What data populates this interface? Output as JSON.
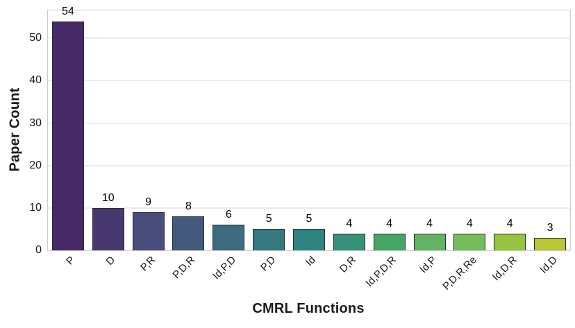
{
  "figure": {
    "background_color": "#ffffff",
    "text_color": "#1a1a1a"
  },
  "chart_data": {
    "type": "bar",
    "title": "",
    "xlabel": "CMRL Functions",
    "ylabel": "Paper Count",
    "categories": [
      "P",
      "D",
      "P,R",
      "P,D,R",
      "Id,P,D",
      "P,D",
      "Id",
      "D,R",
      "Id,P,D,R",
      "Id,P",
      "P,D,R,Re",
      "Id,D,R",
      "Id,D"
    ],
    "values": [
      54,
      10,
      9,
      8,
      6,
      5,
      5,
      4,
      4,
      4,
      4,
      4,
      3
    ],
    "bar_value_labels": [
      "54",
      "10",
      "9",
      "8",
      "6",
      "5",
      "5",
      "4",
      "4",
      "4",
      "4",
      "4",
      "3"
    ],
    "bar_colors": [
      "#462a68",
      "#47396f",
      "#4a4d7c",
      "#43597e",
      "#3d6b80",
      "#35797f",
      "#2f8380",
      "#359178",
      "#45a566",
      "#63b365",
      "#76bd5c",
      "#98c53f",
      "#b9c733"
    ],
    "bar_edge_color": "#2b2b2b",
    "yticks": [
      0,
      10,
      20,
      30,
      40,
      50
    ],
    "ylim": [
      0,
      56.6
    ],
    "grid": "horizontal",
    "grid_color": "#d9d9d9",
    "spine_color": "#cccccc",
    "legend": null
  }
}
